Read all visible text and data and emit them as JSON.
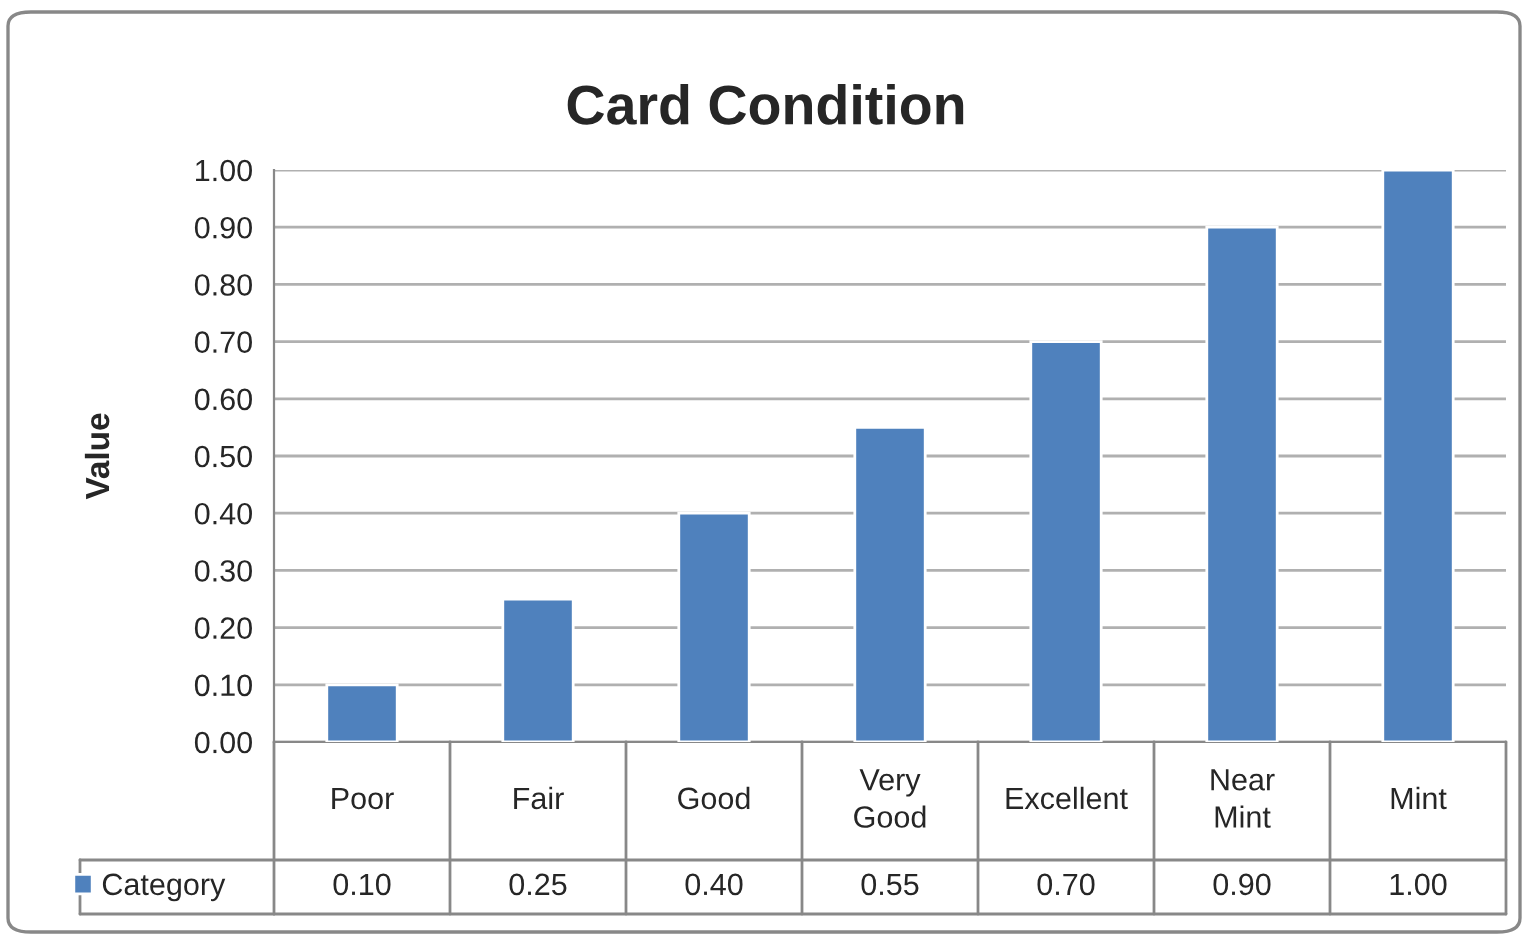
{
  "chart_data": {
    "type": "bar",
    "title": "Card Condition",
    "ylabel": "Value",
    "categories": [
      "Poor",
      "Fair",
      "Good",
      "Very Good",
      "Excellent",
      "Near Mint",
      "Mint"
    ],
    "series": [
      {
        "name": "Category",
        "color": "#4f81bd",
        "values": [
          0.1,
          0.25,
          0.4,
          0.55,
          0.7,
          0.9,
          1.0
        ],
        "value_labels": [
          "0.10",
          "0.25",
          "0.40",
          "0.55",
          "0.70",
          "0.90",
          "1.00"
        ]
      }
    ],
    "ylim": [
      0,
      1
    ],
    "yticks": [
      {
        "value": 0,
        "label": "0.00"
      },
      {
        "value": 0.1,
        "label": "0.10"
      },
      {
        "value": 0.2,
        "label": "0.20"
      },
      {
        "value": 0.3,
        "label": "0.30"
      },
      {
        "value": 0.4,
        "label": "0.40"
      },
      {
        "value": 0.5,
        "label": "0.50"
      },
      {
        "value": 0.6,
        "label": "0.60"
      },
      {
        "value": 0.7,
        "label": "0.70"
      },
      {
        "value": 0.8,
        "label": "0.80"
      },
      {
        "value": 0.9,
        "label": "0.90"
      },
      {
        "value": 1.0,
        "label": "1.00"
      }
    ],
    "grid": "y",
    "legend": "bottom left"
  }
}
